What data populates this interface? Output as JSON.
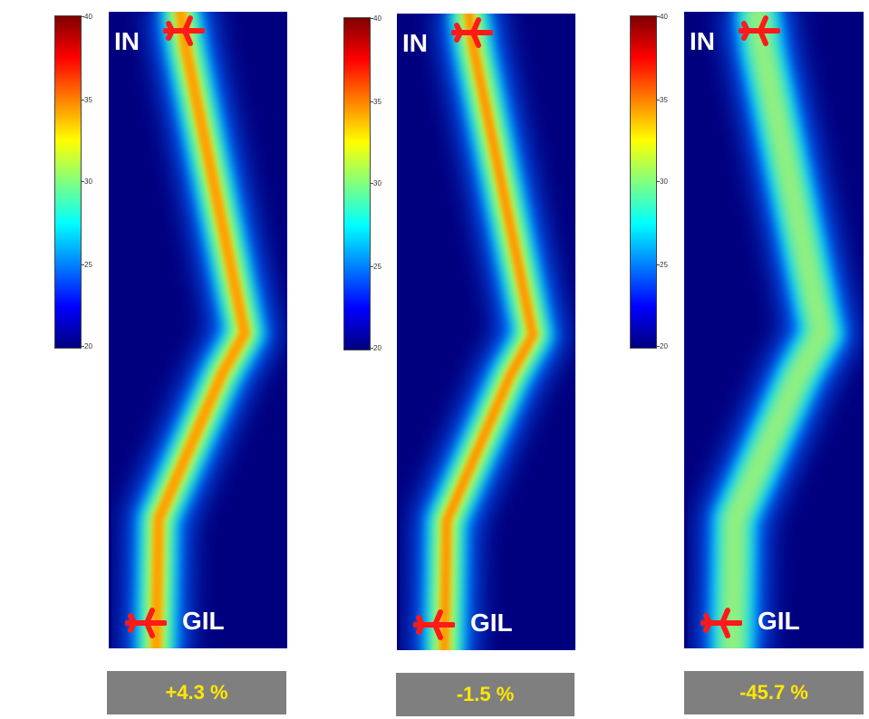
{
  "colorbar": {
    "ticks": [
      "40",
      "35",
      "30",
      "25",
      "20"
    ]
  },
  "labels": {
    "origin": "IN",
    "destination": "GIL"
  },
  "panels": [
    {
      "change": "+4.3 %",
      "intensity": "high"
    },
    {
      "change": "-1.5 %",
      "intensity": "high"
    },
    {
      "change": "-45.7 %",
      "intensity": "low"
    }
  ],
  "colors": {
    "background": "#00007f",
    "badge": "#7f7f7f",
    "badge_text": "#ffe800",
    "plane": "#ff1a1a"
  },
  "icons": [
    "plane-icon"
  ]
}
